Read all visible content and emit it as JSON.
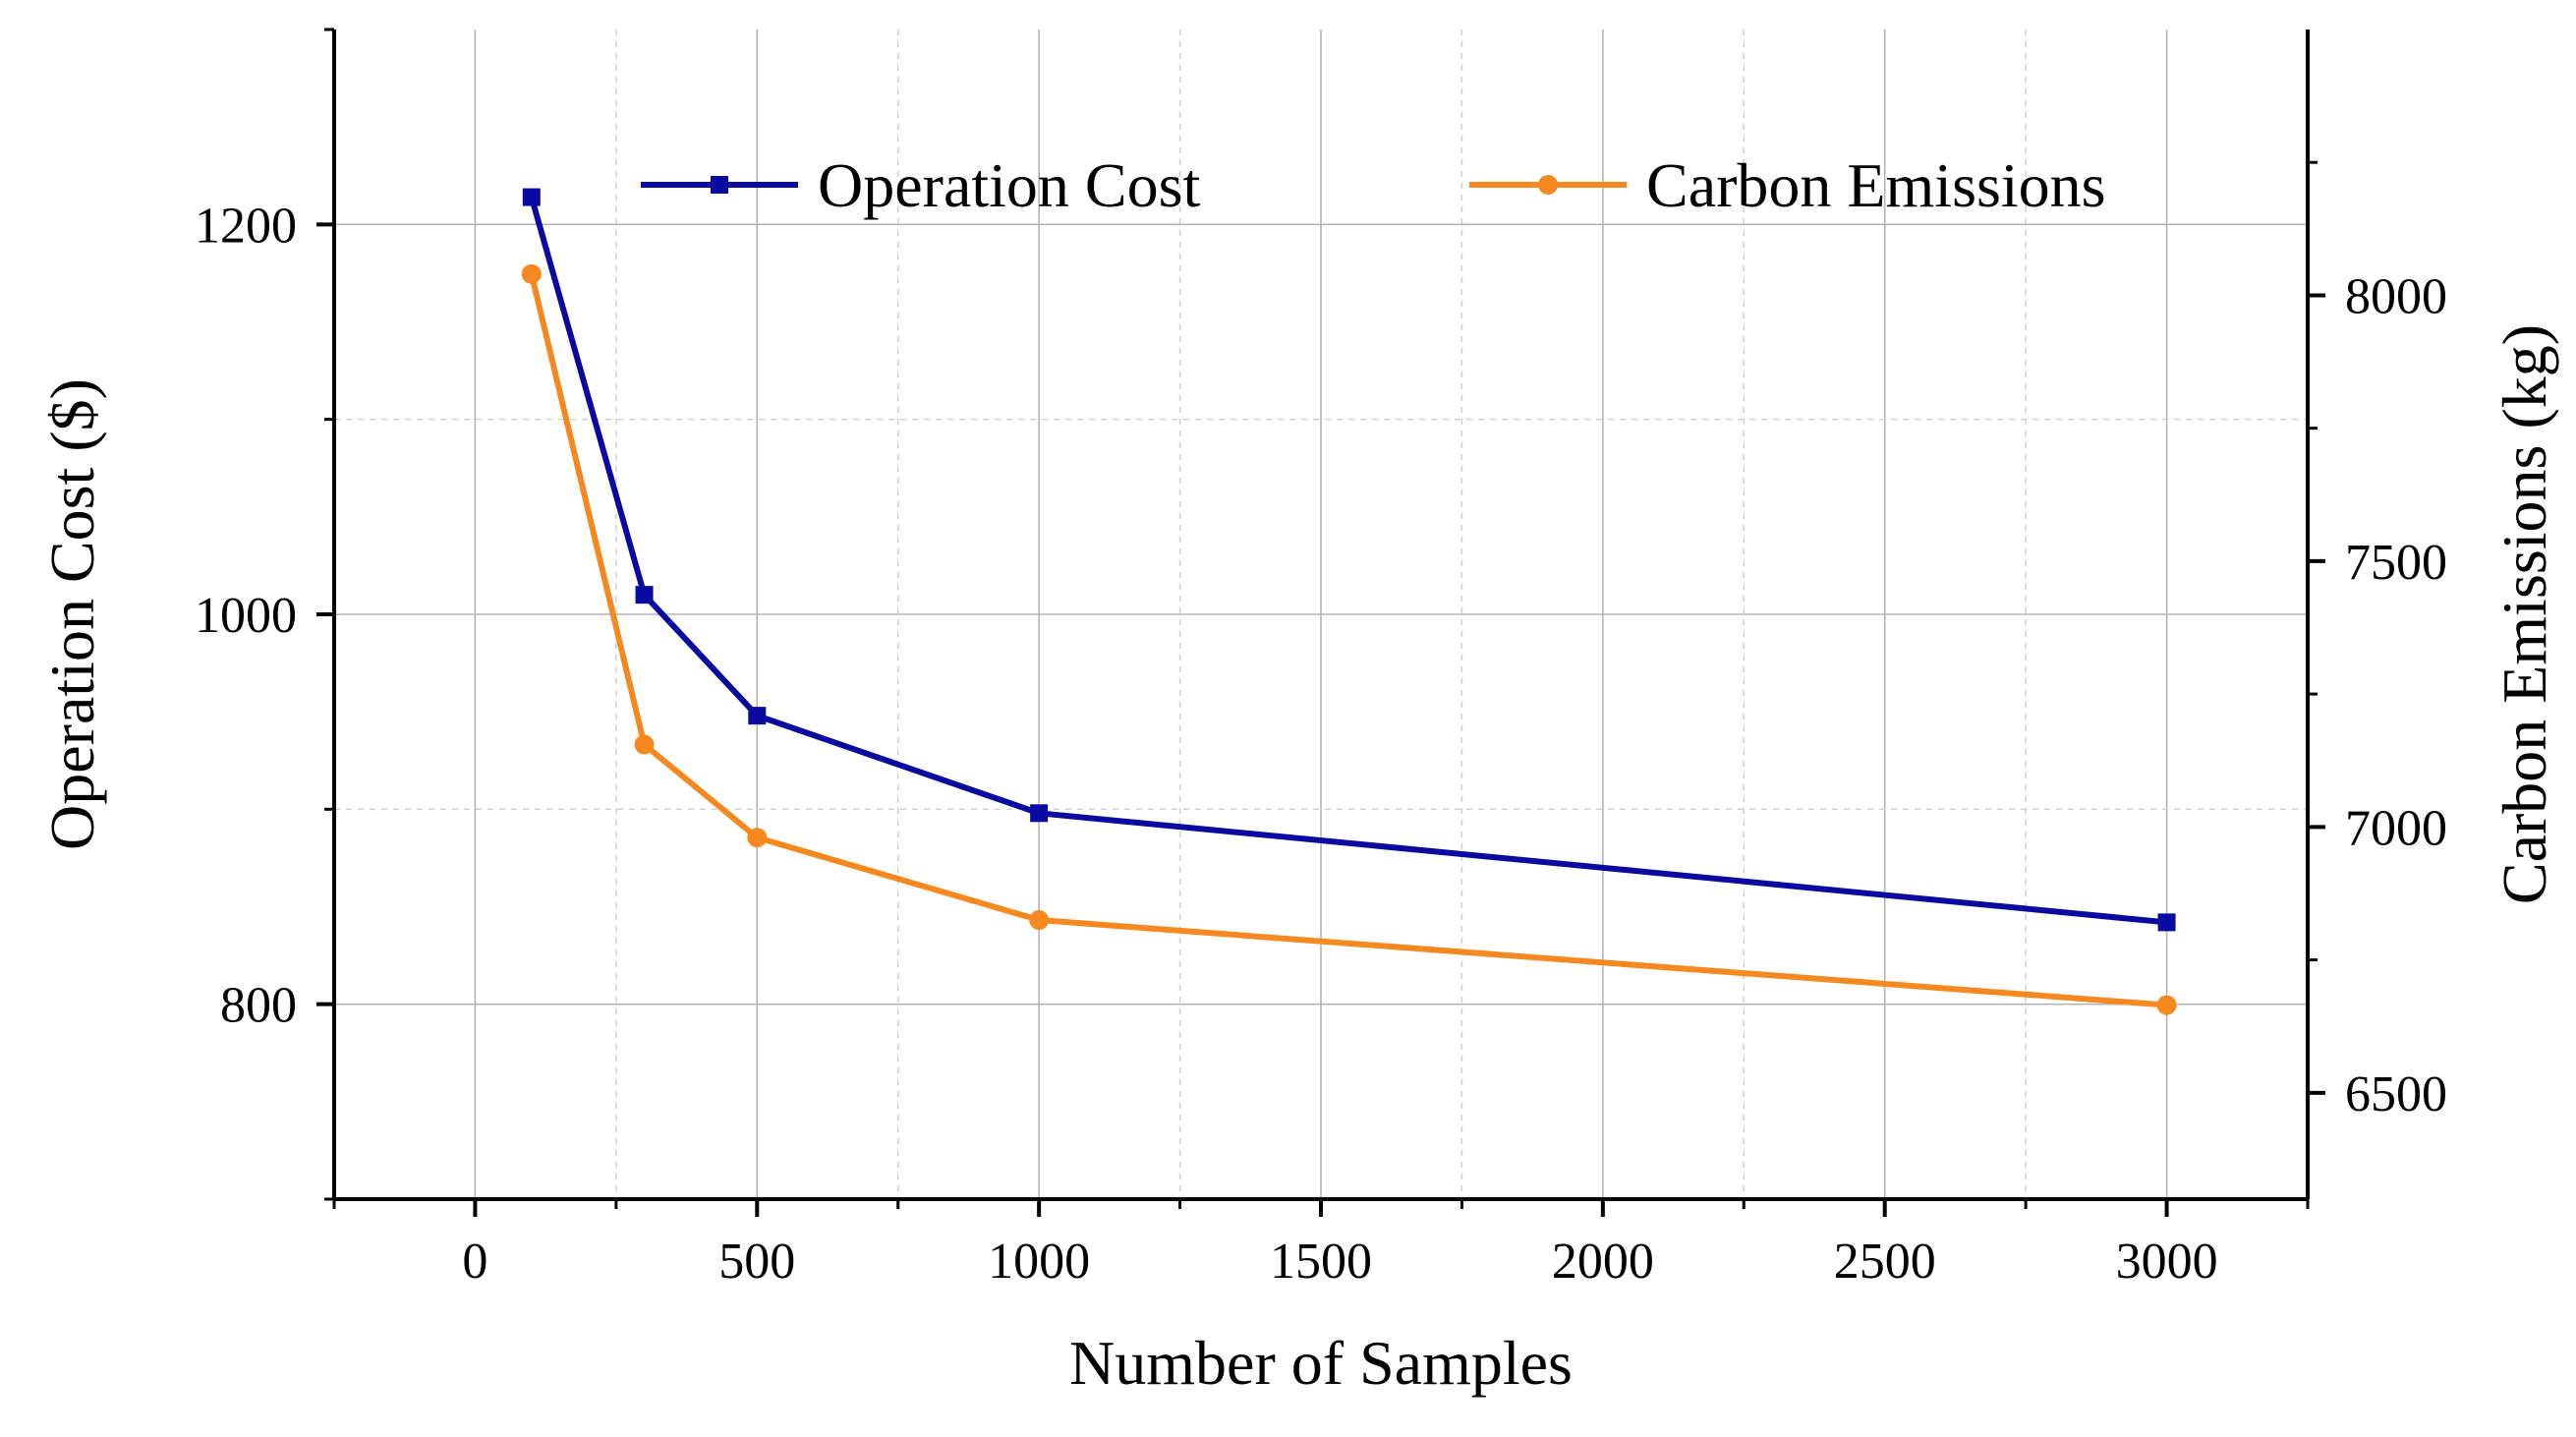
{
  "chart_data": {
    "type": "line",
    "title": "",
    "xlabel": "Number of Samples",
    "ylabel_left": "Operation Cost ($)",
    "ylabel_right": "Carbon Emissions (kg)",
    "xlim": [
      -250,
      3250
    ],
    "ylim_left": [
      700,
      1300
    ],
    "ylim_right": [
      6300,
      8500
    ],
    "x_ticks": [
      0,
      500,
      1000,
      1500,
      2000,
      2500,
      3000
    ],
    "x_tick_labels": [
      "0",
      "500",
      "1000",
      "1500",
      "2000",
      "2500",
      "3000"
    ],
    "y_left_ticks": [
      800,
      1000,
      1200
    ],
    "y_left_tick_labels": [
      "800",
      "1000",
      "1200"
    ],
    "y_right_ticks": [
      6500,
      7000,
      7500,
      8000
    ],
    "y_right_tick_labels": [
      "6500",
      "7000",
      "7500",
      "8000"
    ],
    "grid": true,
    "legend_position": "top",
    "series": [
      {
        "name": "Operation Cost",
        "axis": "left",
        "color": "#0a0aa0",
        "marker": "square",
        "x": [
          100,
          300,
          500,
          1000,
          3000
        ],
        "values": [
          1214,
          1010,
          948,
          898,
          842
        ]
      },
      {
        "name": "Carbon Emissions",
        "axis": "right",
        "color": "#f5891f",
        "marker": "circle",
        "x": [
          100,
          300,
          500,
          1000,
          3000
        ],
        "values": [
          8040,
          7155,
          6980,
          6825,
          6665
        ]
      }
    ]
  }
}
